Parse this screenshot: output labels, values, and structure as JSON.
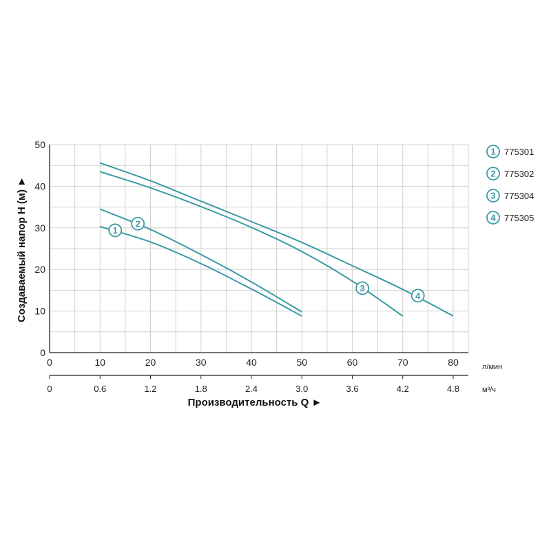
{
  "chart_data": {
    "type": "line",
    "ylabel": "Создаваемый напор H (м) ►",
    "xlabel": "Производительность Q ►",
    "x_unit": "л/мин",
    "x2_unit": "м³/ч",
    "xlim": [
      0,
      80
    ],
    "ylim": [
      0,
      50
    ],
    "x_ticks": [
      "0",
      "10",
      "20",
      "30",
      "40",
      "50",
      "60",
      "70",
      "80"
    ],
    "x2_ticks": [
      "0",
      "0.6",
      "1.2",
      "1.8",
      "2.4",
      "3.0",
      "3.6",
      "4.2",
      "4.8"
    ],
    "y_ticks": [
      "0",
      "10",
      "20",
      "30",
      "40",
      "50"
    ],
    "grid": true,
    "legend_position": "right",
    "series": [
      {
        "name": "775301",
        "label": "1",
        "x": [
          10,
          20,
          30,
          40,
          50
        ],
        "y": [
          30.3,
          26.6,
          21.4,
          15.3,
          8.8
        ],
        "badge_at": [
          13,
          29.4
        ]
      },
      {
        "name": "775302",
        "label": "2",
        "x": [
          10,
          20,
          30,
          40,
          50
        ],
        "y": [
          34.5,
          29.6,
          23.6,
          17.0,
          9.8
        ],
        "badge_at": [
          17.5,
          31.0
        ]
      },
      {
        "name": "775304",
        "label": "3",
        "x": [
          10,
          20,
          30,
          40,
          50,
          60,
          70
        ],
        "y": [
          43.5,
          39.6,
          35.1,
          30.1,
          24.3,
          17.2,
          8.8
        ],
        "badge_at": [
          62,
          15.5
        ]
      },
      {
        "name": "775305",
        "label": "4",
        "x": [
          10,
          20,
          30,
          40,
          50,
          60,
          70,
          80
        ],
        "y": [
          45.6,
          41.3,
          36.4,
          31.5,
          26.5,
          20.9,
          15.2,
          8.8
        ],
        "badge_at": [
          73,
          13.7
        ]
      }
    ]
  },
  "colors": {
    "curve": "#3a9aa3",
    "grid": "#d0d0d0",
    "axis": "#222222"
  }
}
